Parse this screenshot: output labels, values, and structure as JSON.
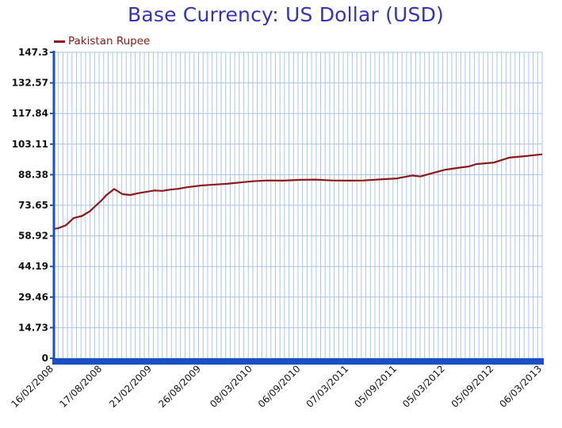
{
  "chart_data": {
    "type": "line",
    "title": "Base Currency: US Dollar (USD)",
    "xlabel": "",
    "ylabel": "",
    "ylim": [
      0,
      147.3
    ],
    "yticks": [
      "0",
      "14.73",
      "29.46",
      "44.19",
      "58.92",
      "73.65",
      "88.38",
      "103.11",
      "117.84",
      "132.57",
      "147.3"
    ],
    "xticks": [
      "16/02/2008",
      "17/08/2008",
      "21/02/2009",
      "26/08/2009",
      "08/03/2010",
      "06/09/2010",
      "07/03/2011",
      "05/09/2011",
      "05/03/2012",
      "05/09/2012",
      "06/03/2013"
    ],
    "grid": true,
    "legend_position": "top-left",
    "colors": {
      "line": "#8b1a1a",
      "grid": "#a9c5ee",
      "axis": "#1b4fc4",
      "plot_bg": "#ffffff"
    },
    "series": [
      {
        "name": "Pakistan Rupee",
        "x": [
          "16/02/2008",
          "01/03/2008",
          "01/04/2008",
          "01/05/2008",
          "01/06/2008",
          "01/07/2008",
          "17/08/2008",
          "01/09/2008",
          "01/10/2008",
          "01/11/2008",
          "01/12/2008",
          "01/01/2009",
          "21/02/2009",
          "01/03/2009",
          "01/04/2009",
          "01/05/2009",
          "01/06/2009",
          "01/07/2009",
          "26/08/2009",
          "01/10/2009",
          "01/12/2009",
          "01/02/2010",
          "08/03/2010",
          "01/05/2010",
          "01/07/2010",
          "06/09/2010",
          "01/11/2010",
          "01/01/2011",
          "07/03/2011",
          "01/05/2011",
          "01/07/2011",
          "05/09/2011",
          "01/11/2011",
          "01/12/2011",
          "01/01/2012",
          "05/03/2012",
          "01/05/2012",
          "01/06/2012",
          "01/07/2012",
          "05/09/2012",
          "01/11/2012",
          "01/01/2013",
          "06/03/2013"
        ],
        "values": [
          62.3,
          62.5,
          64,
          67.5,
          68.5,
          70.8,
          76.4,
          78.5,
          81.5,
          79,
          78.6,
          79.5,
          80.6,
          80.8,
          80.6,
          81.2,
          81.6,
          82.3,
          83.2,
          83.5,
          84,
          84.8,
          85.2,
          85.6,
          85.5,
          85.9,
          86,
          85.6,
          85.5,
          85.6,
          86.1,
          86.6,
          88.0,
          87.5,
          88.6,
          90.8,
          91.8,
          92.3,
          93.5,
          94.2,
          96.6,
          97.3,
          98.2
        ]
      }
    ]
  }
}
